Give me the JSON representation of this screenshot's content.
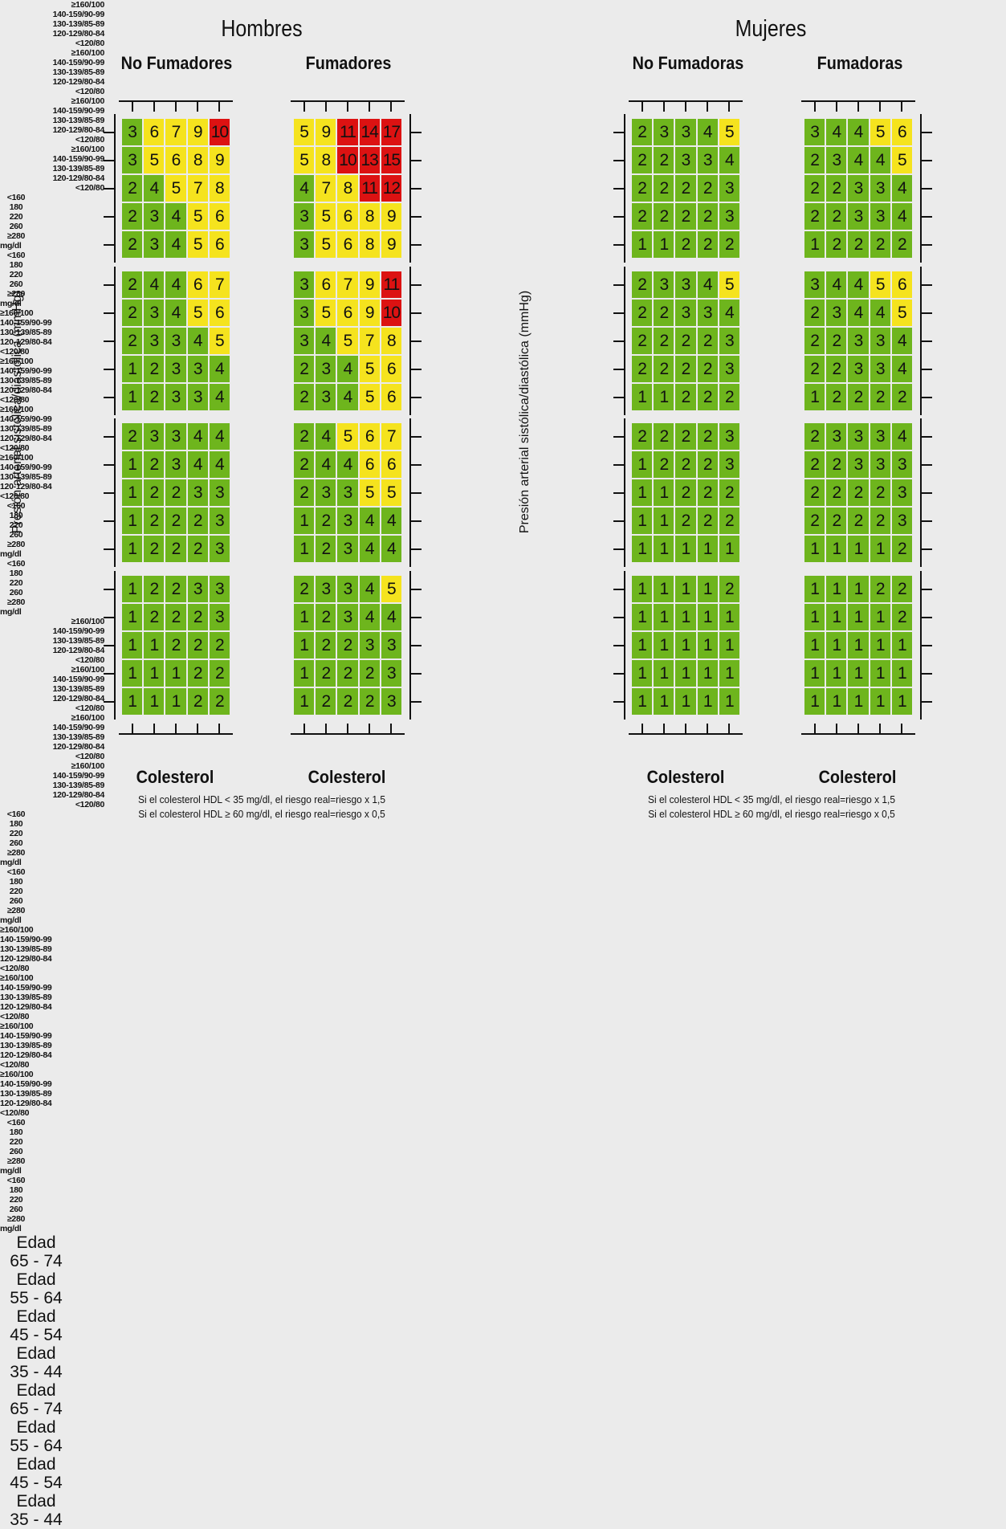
{
  "colors": {
    "green": "#6eb51d",
    "yellow": "#f5e31e",
    "red": "#dc1212",
    "background": "#ebebeb"
  },
  "labels": {
    "hombres": "Hombres",
    "mujeres": "Mujeres",
    "no_fumadores": "No Fumadores",
    "fumadores": "Fumadores",
    "no_fumadoras": "No Fumadoras",
    "fumadoras": "Fumadoras",
    "colesterol": "Colesterol",
    "ylabel": "Presión arterial sistólica/diastólica (mmHg)",
    "unit": "mg/dl",
    "edad": "Edad",
    "note1": "Si el colesterol HDL < 35 mg/dl, el riesgo real=riesgo x 1,5",
    "note2": "Si el colesterol HDL ≥ 60 mg/dl, el riesgo real=riesgo x 0,5"
  },
  "chart_data": {
    "type": "heatmap",
    "cholesterol_categories": [
      "<160",
      "180",
      "220",
      "260",
      "≥280"
    ],
    "bp_categories": [
      "≥160/100",
      "140-159/90-99",
      "130-139/85-89",
      "120-129/80-84",
      "<120/80"
    ],
    "age_groups": [
      "65 - 74",
      "55 - 64",
      "45 - 54",
      "35 - 44"
    ],
    "thresholds": {
      "yellow_from": 5,
      "red_from": 10
    },
    "panels": [
      {
        "sex": "Hombres",
        "smoker": "No Fumadores",
        "grids": [
          [
            [
              3,
              6,
              7,
              9,
              10
            ],
            [
              3,
              5,
              6,
              8,
              9
            ],
            [
              2,
              4,
              5,
              7,
              8
            ],
            [
              2,
              3,
              4,
              5,
              6
            ],
            [
              2,
              3,
              4,
              5,
              6
            ]
          ],
          [
            [
              2,
              4,
              4,
              6,
              7
            ],
            [
              2,
              3,
              4,
              5,
              6
            ],
            [
              2,
              3,
              3,
              4,
              5
            ],
            [
              1,
              2,
              3,
              3,
              4
            ],
            [
              1,
              2,
              3,
              3,
              4
            ]
          ],
          [
            [
              2,
              3,
              3,
              4,
              4
            ],
            [
              1,
              2,
              3,
              4,
              4
            ],
            [
              1,
              2,
              2,
              3,
              3
            ],
            [
              1,
              2,
              2,
              2,
              3
            ],
            [
              1,
              2,
              2,
              2,
              3
            ]
          ],
          [
            [
              1,
              2,
              2,
              3,
              3
            ],
            [
              1,
              2,
              2,
              2,
              3
            ],
            [
              1,
              1,
              2,
              2,
              2
            ],
            [
              1,
              1,
              1,
              2,
              2
            ],
            [
              1,
              1,
              1,
              2,
              2
            ]
          ]
        ]
      },
      {
        "sex": "Hombres",
        "smoker": "Fumadores",
        "grids": [
          [
            [
              5,
              9,
              11,
              14,
              17
            ],
            [
              5,
              8,
              10,
              13,
              15
            ],
            [
              4,
              7,
              8,
              11,
              12
            ],
            [
              3,
              5,
              6,
              8,
              9
            ],
            [
              3,
              5,
              6,
              8,
              9
            ]
          ],
          [
            [
              3,
              6,
              7,
              9,
              11
            ],
            [
              3,
              5,
              6,
              9,
              10
            ],
            [
              3,
              4,
              5,
              7,
              8
            ],
            [
              2,
              3,
              4,
              5,
              6
            ],
            [
              2,
              3,
              4,
              5,
              6
            ]
          ],
          [
            [
              2,
              4,
              5,
              6,
              7
            ],
            [
              2,
              4,
              4,
              6,
              6
            ],
            [
              2,
              3,
              3,
              5,
              5
            ],
            [
              1,
              2,
              3,
              4,
              4
            ],
            [
              1,
              2,
              3,
              4,
              4
            ]
          ],
          [
            [
              2,
              3,
              3,
              4,
              5
            ],
            [
              1,
              2,
              3,
              4,
              4
            ],
            [
              1,
              2,
              2,
              3,
              3
            ],
            [
              1,
              2,
              2,
              2,
              3
            ],
            [
              1,
              2,
              2,
              2,
              3
            ]
          ]
        ]
      },
      {
        "sex": "Mujeres",
        "smoker": "No Fumadoras",
        "grids": [
          [
            [
              2,
              3,
              3,
              4,
              5
            ],
            [
              2,
              2,
              3,
              3,
              4
            ],
            [
              2,
              2,
              2,
              2,
              3
            ],
            [
              2,
              2,
              2,
              2,
              3
            ],
            [
              1,
              1,
              2,
              2,
              2
            ]
          ],
          [
            [
              2,
              3,
              3,
              4,
              5
            ],
            [
              2,
              2,
              3,
              3,
              4
            ],
            [
              2,
              2,
              2,
              2,
              3
            ],
            [
              2,
              2,
              2,
              2,
              3
            ],
            [
              1,
              1,
              2,
              2,
              2
            ]
          ],
          [
            [
              2,
              2,
              2,
              2,
              3
            ],
            [
              1,
              2,
              2,
              2,
              3
            ],
            [
              1,
              1,
              2,
              2,
              2
            ],
            [
              1,
              1,
              2,
              2,
              2
            ],
            [
              1,
              1,
              1,
              1,
              1
            ]
          ],
          [
            [
              1,
              1,
              1,
              1,
              2
            ],
            [
              1,
              1,
              1,
              1,
              1
            ],
            [
              1,
              1,
              1,
              1,
              1
            ],
            [
              1,
              1,
              1,
              1,
              1
            ],
            [
              1,
              1,
              1,
              1,
              1
            ]
          ]
        ]
      },
      {
        "sex": "Mujeres",
        "smoker": "Fumadoras",
        "grids": [
          [
            [
              3,
              4,
              4,
              5,
              6
            ],
            [
              2,
              3,
              4,
              4,
              5
            ],
            [
              2,
              2,
              3,
              3,
              4
            ],
            [
              2,
              2,
              3,
              3,
              4
            ],
            [
              1,
              2,
              2,
              2,
              2
            ]
          ],
          [
            [
              3,
              4,
              4,
              5,
              6
            ],
            [
              2,
              3,
              4,
              4,
              5
            ],
            [
              2,
              2,
              3,
              3,
              4
            ],
            [
              2,
              2,
              3,
              3,
              4
            ],
            [
              1,
              2,
              2,
              2,
              2
            ]
          ],
          [
            [
              2,
              3,
              3,
              3,
              4
            ],
            [
              2,
              2,
              3,
              3,
              3
            ],
            [
              2,
              2,
              2,
              2,
              3
            ],
            [
              2,
              2,
              2,
              2,
              3
            ],
            [
              1,
              1,
              1,
              1,
              2
            ]
          ],
          [
            [
              1,
              1,
              1,
              2,
              2
            ],
            [
              1,
              1,
              1,
              1,
              2
            ],
            [
              1,
              1,
              1,
              1,
              1
            ],
            [
              1,
              1,
              1,
              1,
              1
            ],
            [
              1,
              1,
              1,
              1,
              1
            ]
          ]
        ]
      }
    ]
  }
}
